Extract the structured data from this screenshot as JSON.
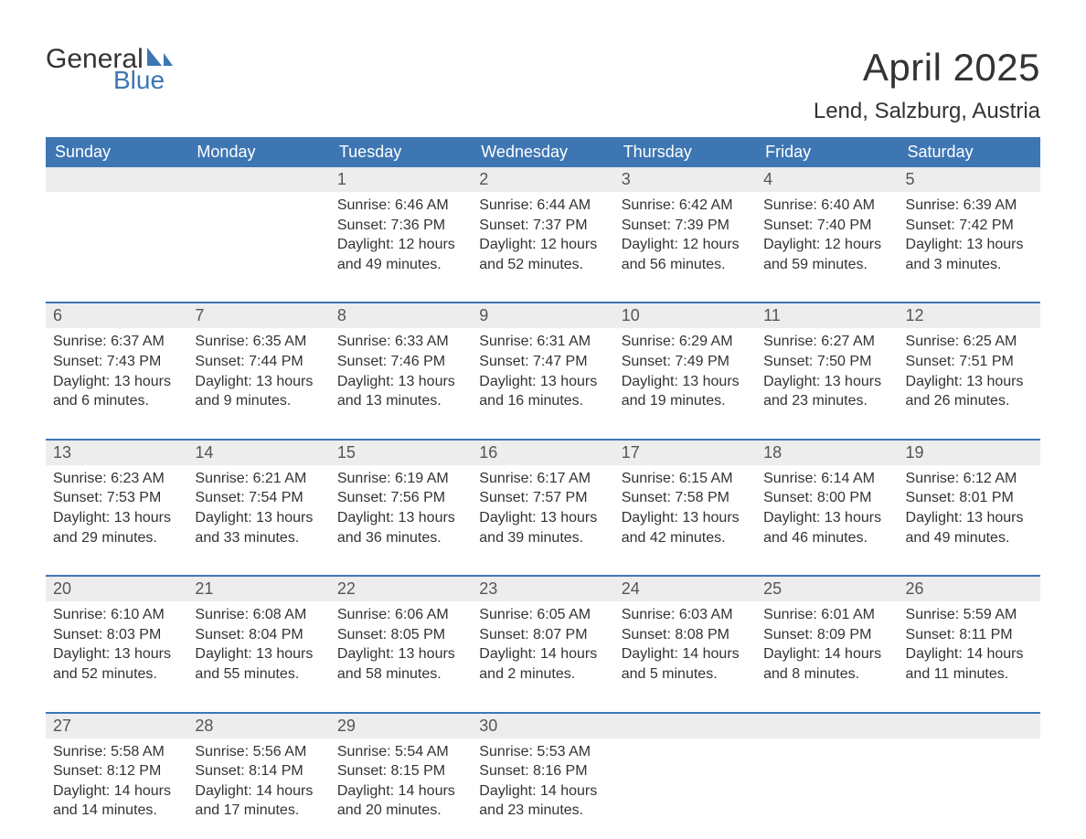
{
  "logo": {
    "word1": "General",
    "word2": "Blue"
  },
  "title": "April 2025",
  "location": "Lend, Salzburg, Austria",
  "colors": {
    "header_bg": "#3d76b3",
    "band_bg": "#ededed",
    "text": "#333333",
    "logo_blue": "#3d76b3"
  },
  "weekdays": [
    "Sunday",
    "Monday",
    "Tuesday",
    "Wednesday",
    "Thursday",
    "Friday",
    "Saturday"
  ],
  "weeks": [
    [
      {
        "num": "",
        "sunrise": "",
        "sunset": "",
        "daylight1": "",
        "daylight2": ""
      },
      {
        "num": "",
        "sunrise": "",
        "sunset": "",
        "daylight1": "",
        "daylight2": ""
      },
      {
        "num": "1",
        "sunrise": "Sunrise: 6:46 AM",
        "sunset": "Sunset: 7:36 PM",
        "daylight1": "Daylight: 12 hours",
        "daylight2": "and 49 minutes."
      },
      {
        "num": "2",
        "sunrise": "Sunrise: 6:44 AM",
        "sunset": "Sunset: 7:37 PM",
        "daylight1": "Daylight: 12 hours",
        "daylight2": "and 52 minutes."
      },
      {
        "num": "3",
        "sunrise": "Sunrise: 6:42 AM",
        "sunset": "Sunset: 7:39 PM",
        "daylight1": "Daylight: 12 hours",
        "daylight2": "and 56 minutes."
      },
      {
        "num": "4",
        "sunrise": "Sunrise: 6:40 AM",
        "sunset": "Sunset: 7:40 PM",
        "daylight1": "Daylight: 12 hours",
        "daylight2": "and 59 minutes."
      },
      {
        "num": "5",
        "sunrise": "Sunrise: 6:39 AM",
        "sunset": "Sunset: 7:42 PM",
        "daylight1": "Daylight: 13 hours",
        "daylight2": "and 3 minutes."
      }
    ],
    [
      {
        "num": "6",
        "sunrise": "Sunrise: 6:37 AM",
        "sunset": "Sunset: 7:43 PM",
        "daylight1": "Daylight: 13 hours",
        "daylight2": "and 6 minutes."
      },
      {
        "num": "7",
        "sunrise": "Sunrise: 6:35 AM",
        "sunset": "Sunset: 7:44 PM",
        "daylight1": "Daylight: 13 hours",
        "daylight2": "and 9 minutes."
      },
      {
        "num": "8",
        "sunrise": "Sunrise: 6:33 AM",
        "sunset": "Sunset: 7:46 PM",
        "daylight1": "Daylight: 13 hours",
        "daylight2": "and 13 minutes."
      },
      {
        "num": "9",
        "sunrise": "Sunrise: 6:31 AM",
        "sunset": "Sunset: 7:47 PM",
        "daylight1": "Daylight: 13 hours",
        "daylight2": "and 16 minutes."
      },
      {
        "num": "10",
        "sunrise": "Sunrise: 6:29 AM",
        "sunset": "Sunset: 7:49 PM",
        "daylight1": "Daylight: 13 hours",
        "daylight2": "and 19 minutes."
      },
      {
        "num": "11",
        "sunrise": "Sunrise: 6:27 AM",
        "sunset": "Sunset: 7:50 PM",
        "daylight1": "Daylight: 13 hours",
        "daylight2": "and 23 minutes."
      },
      {
        "num": "12",
        "sunrise": "Sunrise: 6:25 AM",
        "sunset": "Sunset: 7:51 PM",
        "daylight1": "Daylight: 13 hours",
        "daylight2": "and 26 minutes."
      }
    ],
    [
      {
        "num": "13",
        "sunrise": "Sunrise: 6:23 AM",
        "sunset": "Sunset: 7:53 PM",
        "daylight1": "Daylight: 13 hours",
        "daylight2": "and 29 minutes."
      },
      {
        "num": "14",
        "sunrise": "Sunrise: 6:21 AM",
        "sunset": "Sunset: 7:54 PM",
        "daylight1": "Daylight: 13 hours",
        "daylight2": "and 33 minutes."
      },
      {
        "num": "15",
        "sunrise": "Sunrise: 6:19 AM",
        "sunset": "Sunset: 7:56 PM",
        "daylight1": "Daylight: 13 hours",
        "daylight2": "and 36 minutes."
      },
      {
        "num": "16",
        "sunrise": "Sunrise: 6:17 AM",
        "sunset": "Sunset: 7:57 PM",
        "daylight1": "Daylight: 13 hours",
        "daylight2": "and 39 minutes."
      },
      {
        "num": "17",
        "sunrise": "Sunrise: 6:15 AM",
        "sunset": "Sunset: 7:58 PM",
        "daylight1": "Daylight: 13 hours",
        "daylight2": "and 42 minutes."
      },
      {
        "num": "18",
        "sunrise": "Sunrise: 6:14 AM",
        "sunset": "Sunset: 8:00 PM",
        "daylight1": "Daylight: 13 hours",
        "daylight2": "and 46 minutes."
      },
      {
        "num": "19",
        "sunrise": "Sunrise: 6:12 AM",
        "sunset": "Sunset: 8:01 PM",
        "daylight1": "Daylight: 13 hours",
        "daylight2": "and 49 minutes."
      }
    ],
    [
      {
        "num": "20",
        "sunrise": "Sunrise: 6:10 AM",
        "sunset": "Sunset: 8:03 PM",
        "daylight1": "Daylight: 13 hours",
        "daylight2": "and 52 minutes."
      },
      {
        "num": "21",
        "sunrise": "Sunrise: 6:08 AM",
        "sunset": "Sunset: 8:04 PM",
        "daylight1": "Daylight: 13 hours",
        "daylight2": "and 55 minutes."
      },
      {
        "num": "22",
        "sunrise": "Sunrise: 6:06 AM",
        "sunset": "Sunset: 8:05 PM",
        "daylight1": "Daylight: 13 hours",
        "daylight2": "and 58 minutes."
      },
      {
        "num": "23",
        "sunrise": "Sunrise: 6:05 AM",
        "sunset": "Sunset: 8:07 PM",
        "daylight1": "Daylight: 14 hours",
        "daylight2": "and 2 minutes."
      },
      {
        "num": "24",
        "sunrise": "Sunrise: 6:03 AM",
        "sunset": "Sunset: 8:08 PM",
        "daylight1": "Daylight: 14 hours",
        "daylight2": "and 5 minutes."
      },
      {
        "num": "25",
        "sunrise": "Sunrise: 6:01 AM",
        "sunset": "Sunset: 8:09 PM",
        "daylight1": "Daylight: 14 hours",
        "daylight2": "and 8 minutes."
      },
      {
        "num": "26",
        "sunrise": "Sunrise: 5:59 AM",
        "sunset": "Sunset: 8:11 PM",
        "daylight1": "Daylight: 14 hours",
        "daylight2": "and 11 minutes."
      }
    ],
    [
      {
        "num": "27",
        "sunrise": "Sunrise: 5:58 AM",
        "sunset": "Sunset: 8:12 PM",
        "daylight1": "Daylight: 14 hours",
        "daylight2": "and 14 minutes."
      },
      {
        "num": "28",
        "sunrise": "Sunrise: 5:56 AM",
        "sunset": "Sunset: 8:14 PM",
        "daylight1": "Daylight: 14 hours",
        "daylight2": "and 17 minutes."
      },
      {
        "num": "29",
        "sunrise": "Sunrise: 5:54 AM",
        "sunset": "Sunset: 8:15 PM",
        "daylight1": "Daylight: 14 hours",
        "daylight2": "and 20 minutes."
      },
      {
        "num": "30",
        "sunrise": "Sunrise: 5:53 AM",
        "sunset": "Sunset: 8:16 PM",
        "daylight1": "Daylight: 14 hours",
        "daylight2": "and 23 minutes."
      },
      {
        "num": "",
        "sunrise": "",
        "sunset": "",
        "daylight1": "",
        "daylight2": ""
      },
      {
        "num": "",
        "sunrise": "",
        "sunset": "",
        "daylight1": "",
        "daylight2": ""
      },
      {
        "num": "",
        "sunrise": "",
        "sunset": "",
        "daylight1": "",
        "daylight2": ""
      }
    ]
  ]
}
